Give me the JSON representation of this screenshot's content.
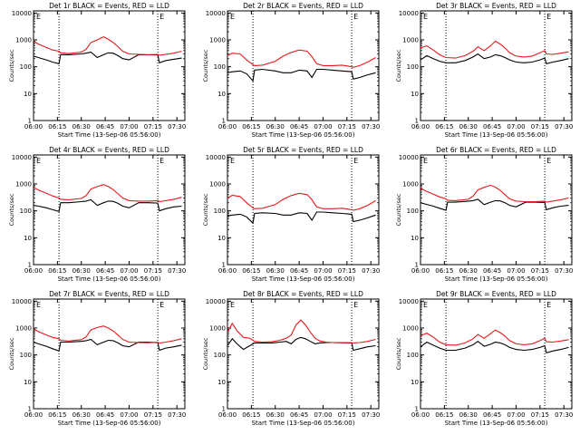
{
  "colors": {
    "events": "#000000",
    "lld": "#e41a1c",
    "axis": "#000000",
    "background": "#ffffff"
  },
  "shared_axes": {
    "x_tick_labels": [
      "06:00",
      "06:15",
      "06:30",
      "06:45",
      "07:00",
      "07:15",
      "07:30"
    ],
    "x_tick_minutes": [
      0,
      15,
      30,
      45,
      60,
      75,
      90
    ],
    "x_range_minutes": [
      0,
      95
    ],
    "y_tick_labels": [
      "1",
      "10",
      "100",
      "1000",
      "10000"
    ],
    "y_tick_values": [
      1,
      10,
      100,
      1000,
      10000
    ],
    "y_range": [
      1,
      12000
    ],
    "y_scale": "log",
    "vertical_dotted_lines_minutes": [
      16,
      78
    ],
    "corner_marker": "E"
  },
  "chart_data": [
    {
      "type": "line",
      "title": "Det 1r BLACK = Events, RED = LLD",
      "xlabel": "Start Time (13-Sep-06 05:56:00)",
      "ylabel": "Counts/sec",
      "x": [
        0,
        3,
        8,
        12,
        16,
        17,
        22,
        30,
        33,
        36,
        40,
        44,
        47,
        50,
        53,
        56,
        60,
        66,
        72,
        78,
        79,
        83,
        88,
        93
      ],
      "series": [
        {
          "name": "BLACK",
          "values": [
            250,
            220,
            180,
            150,
            130,
            280,
            280,
            300,
            320,
            350,
            220,
            280,
            330,
            320,
            260,
            200,
            180,
            280,
            280,
            275,
            140,
            170,
            190,
            210
          ]
        },
        {
          "name": "RED",
          "values": [
            900,
            700,
            520,
            420,
            380,
            330,
            310,
            350,
            450,
            800,
            1000,
            1300,
            1050,
            800,
            560,
            380,
            300,
            290,
            280,
            290,
            270,
            290,
            320,
            380
          ]
        }
      ]
    },
    {
      "type": "line",
      "title": "Det 2r BLACK = Events, RED = LLD",
      "xlabel": "Start Time (13-Sep-06 05:56:00)",
      "ylabel": "Counts/sec",
      "x": [
        0,
        3,
        8,
        12,
        16,
        17,
        22,
        30,
        35,
        40,
        45,
        50,
        53,
        56,
        60,
        66,
        72,
        78,
        79,
        83,
        88,
        93
      ],
      "series": [
        {
          "name": "BLACK",
          "values": [
            60,
            65,
            70,
            55,
            30,
            75,
            80,
            70,
            60,
            60,
            75,
            70,
            40,
            80,
            80,
            75,
            70,
            65,
            35,
            40,
            50,
            60
          ]
        },
        {
          "name": "RED",
          "values": [
            260,
            320,
            300,
            180,
            120,
            110,
            115,
            160,
            250,
            340,
            420,
            380,
            240,
            130,
            110,
            110,
            115,
            100,
            95,
            110,
            150,
            220
          ]
        }
      ]
    },
    {
      "type": "line",
      "title": "Det 3r BLACK = Events, RED = LLD",
      "xlabel": "Start Time (13-Sep-06 05:56:00)",
      "ylabel": "Counts/sec",
      "x": [
        0,
        4,
        8,
        12,
        16,
        22,
        28,
        33,
        36,
        40,
        44,
        47,
        50,
        53,
        56,
        60,
        65,
        70,
        75,
        78,
        79,
        83,
        88,
        93
      ],
      "series": [
        {
          "name": "BLACK",
          "values": [
            180,
            260,
            200,
            160,
            140,
            140,
            170,
            230,
            300,
            200,
            230,
            280,
            260,
            220,
            180,
            150,
            140,
            150,
            180,
            210,
            130,
            150,
            170,
            200
          ]
        },
        {
          "name": "RED",
          "values": [
            500,
            600,
            420,
            280,
            220,
            210,
            260,
            380,
            550,
            400,
            600,
            900,
            700,
            500,
            330,
            250,
            230,
            250,
            330,
            400,
            300,
            290,
            320,
            360
          ]
        }
      ]
    },
    {
      "type": "line",
      "title": "Det 4r BLACK = Events, RED = LLD",
      "xlabel": "Start Time (13-Sep-06 05:56:00)",
      "ylabel": "Counts/sec",
      "x": [
        0,
        3,
        8,
        12,
        16,
        17,
        22,
        30,
        33,
        36,
        40,
        44,
        47,
        50,
        53,
        56,
        60,
        66,
        72,
        78,
        79,
        83,
        88,
        93
      ],
      "series": [
        {
          "name": "BLACK",
          "values": [
            160,
            150,
            130,
            110,
            95,
            200,
            200,
            220,
            230,
            260,
            160,
            200,
            230,
            225,
            190,
            150,
            130,
            200,
            200,
            195,
            100,
            120,
            140,
            150
          ]
        },
        {
          "name": "RED",
          "values": [
            750,
            600,
            450,
            360,
            300,
            270,
            260,
            290,
            370,
            650,
            800,
            950,
            800,
            620,
            430,
            300,
            240,
            230,
            230,
            240,
            220,
            240,
            270,
            320
          ]
        }
      ]
    },
    {
      "type": "line",
      "title": "Det 5r BLACK = Events, RED = LLD",
      "xlabel": "Start Time (13-Sep-06 05:56:00)",
      "ylabel": "Counts/sec",
      "x": [
        0,
        3,
        8,
        12,
        16,
        17,
        22,
        30,
        35,
        40,
        45,
        50,
        53,
        56,
        60,
        66,
        72,
        78,
        79,
        83,
        88,
        93
      ],
      "series": [
        {
          "name": "BLACK",
          "values": [
            65,
            70,
            75,
            60,
            35,
            80,
            85,
            80,
            70,
            70,
            85,
            80,
            45,
            90,
            90,
            85,
            80,
            75,
            40,
            45,
            55,
            70
          ]
        },
        {
          "name": "RED",
          "values": [
            300,
            380,
            340,
            200,
            130,
            120,
            125,
            170,
            270,
            370,
            450,
            400,
            260,
            140,
            120,
            120,
            125,
            110,
            105,
            120,
            160,
            240
          ]
        }
      ]
    },
    {
      "type": "line",
      "title": "Det 6r BLACK = Events, RED = LLD",
      "xlabel": "Start Time (13-Sep-06 05:56:00)",
      "ylabel": "Counts/sec",
      "x": [
        0,
        3,
        8,
        12,
        16,
        17,
        22,
        30,
        33,
        36,
        40,
        44,
        47,
        50,
        53,
        56,
        60,
        66,
        72,
        78,
        79,
        83,
        88,
        93
      ],
      "series": [
        {
          "name": "BLACK",
          "values": [
            200,
            180,
            150,
            125,
            105,
            210,
            210,
            230,
            240,
            270,
            170,
            210,
            240,
            235,
            200,
            160,
            140,
            210,
            210,
            205,
            110,
            130,
            150,
            160
          ]
        },
        {
          "name": "RED",
          "values": [
            700,
            560,
            420,
            330,
            280,
            250,
            240,
            270,
            350,
            600,
            750,
            900,
            760,
            580,
            400,
            280,
            230,
            220,
            220,
            230,
            210,
            230,
            260,
            300
          ]
        }
      ]
    },
    {
      "type": "line",
      "title": "Det 7r BLACK = Events, RED = LLD",
      "xlabel": "Start Time (13-Sep-06 05:56:00)",
      "ylabel": "Counts/sec",
      "x": [
        0,
        3,
        8,
        12,
        16,
        17,
        22,
        30,
        33,
        36,
        40,
        44,
        47,
        50,
        53,
        56,
        60,
        66,
        72,
        78,
        79,
        83,
        88,
        93
      ],
      "series": [
        {
          "name": "BLACK",
          "values": [
            300,
            260,
            210,
            170,
            140,
            300,
            300,
            320,
            340,
            380,
            240,
            300,
            350,
            340,
            280,
            220,
            200,
            300,
            300,
            290,
            150,
            180,
            200,
            230
          ]
        },
        {
          "name": "RED",
          "values": [
            950,
            740,
            560,
            450,
            400,
            350,
            330,
            370,
            470,
            850,
            1050,
            1200,
            1000,
            780,
            550,
            380,
            300,
            290,
            285,
            295,
            275,
            300,
            340,
            400
          ]
        }
      ]
    },
    {
      "type": "line",
      "title": "Det 8r BLACK = Events, RED = LLD",
      "xlabel": "Start Time (13-Sep-06 05:56:00)",
      "ylabel": "Counts/sec",
      "x": [
        0,
        3,
        6,
        10,
        14,
        17,
        22,
        28,
        33,
        37,
        40,
        43,
        46,
        49,
        52,
        55,
        58,
        62,
        66,
        72,
        78,
        79,
        83,
        88,
        93
      ],
      "series": [
        {
          "name": "BLACK",
          "values": [
            220,
            400,
            260,
            160,
            220,
            280,
            280,
            280,
            300,
            320,
            260,
            380,
            450,
            400,
            320,
            260,
            280,
            290,
            290,
            285,
            280,
            150,
            170,
            200,
            220
          ]
        },
        {
          "name": "RED",
          "values": [
            700,
            1500,
            800,
            450,
            420,
            320,
            300,
            310,
            350,
            420,
            550,
            1300,
            2000,
            1300,
            700,
            420,
            330,
            300,
            290,
            285,
            285,
            280,
            290,
            320,
            380
          ]
        }
      ]
    },
    {
      "type": "line",
      "title": "Det 9r BLACK = Events, RED = LLD",
      "xlabel": "Start Time (13-Sep-06 05:56:00)",
      "ylabel": "Counts/sec",
      "x": [
        0,
        4,
        8,
        12,
        16,
        22,
        28,
        33,
        36,
        40,
        44,
        47,
        50,
        53,
        56,
        60,
        65,
        70,
        75,
        78,
        79,
        83,
        88,
        93
      ],
      "series": [
        {
          "name": "BLACK",
          "values": [
            200,
            300,
            230,
            180,
            150,
            150,
            180,
            240,
            320,
            210,
            250,
            300,
            280,
            240,
            190,
            160,
            150,
            160,
            190,
            220,
            120,
            140,
            160,
            190
          ]
        },
        {
          "name": "RED",
          "values": [
            520,
            650,
            460,
            300,
            240,
            230,
            280,
            400,
            580,
            420,
            620,
            850,
            680,
            500,
            340,
            260,
            240,
            260,
            340,
            420,
            310,
            300,
            330,
            370
          ]
        }
      ]
    }
  ]
}
